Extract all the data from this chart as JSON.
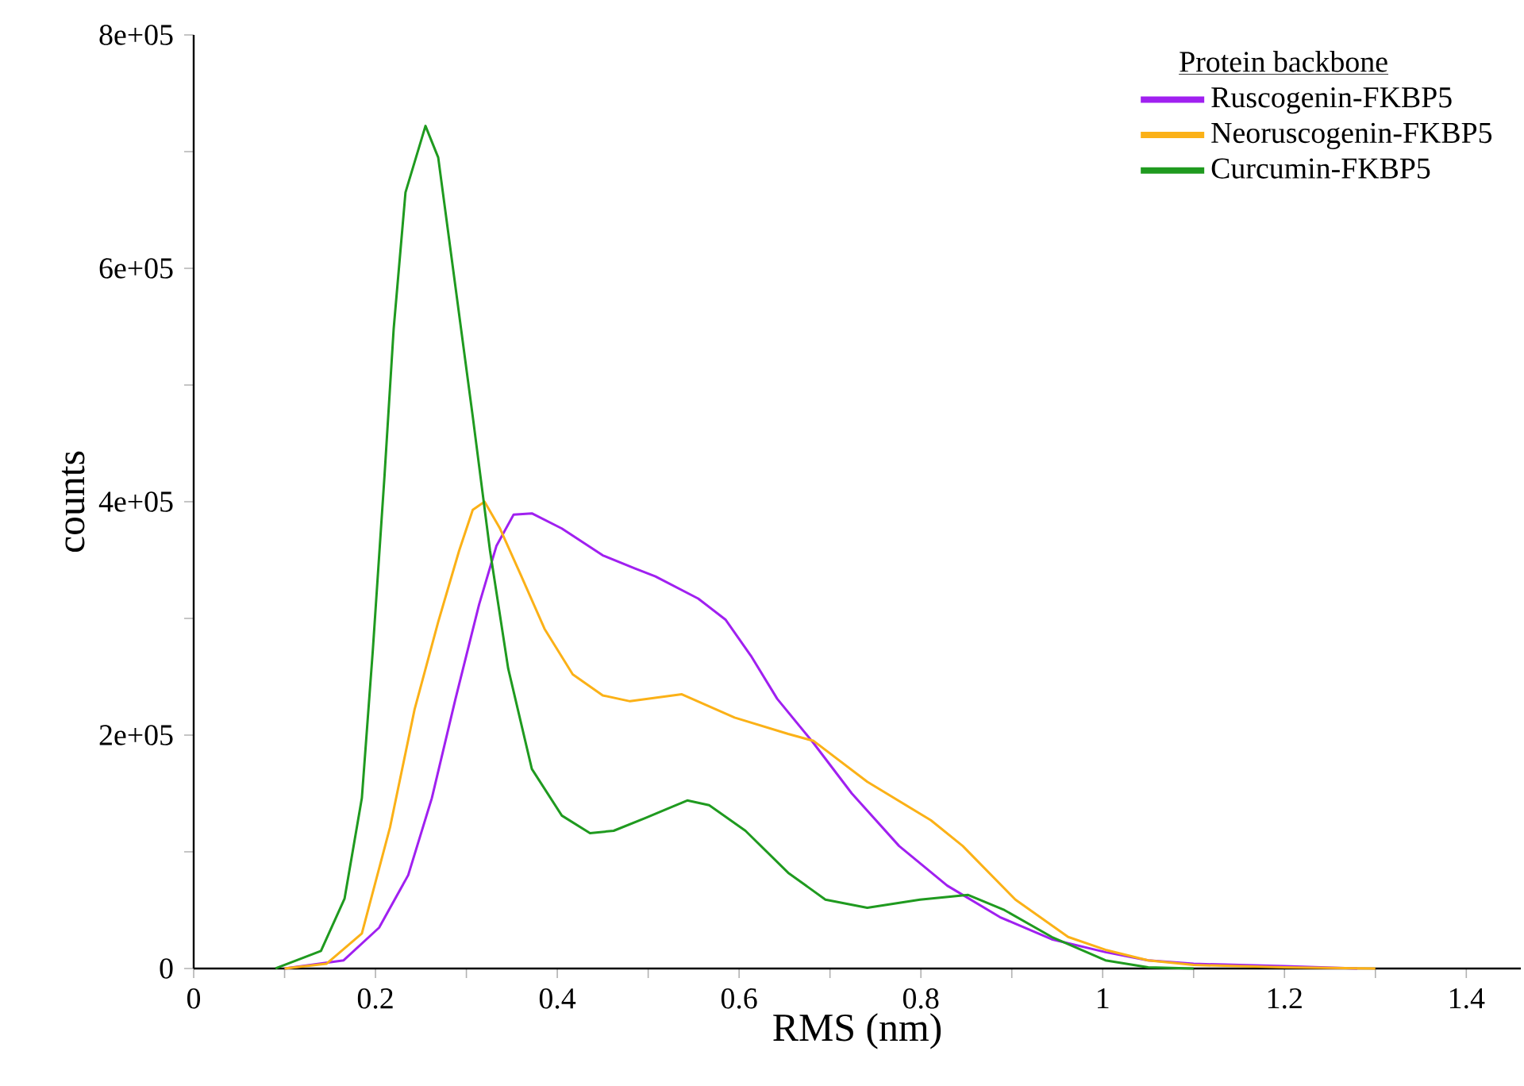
{
  "chart_data": {
    "type": "line",
    "xlabel": "RMS (nm)",
    "ylabel": "counts",
    "legend_title": "Protein backbone",
    "legend": "top right",
    "marker": "none",
    "line_style": "solid",
    "xlim": [
      0,
      1.46
    ],
    "ylim": [
      0,
      800000
    ],
    "xticks": [
      0,
      {
        "value": 0.1,
        "label": null
      },
      {
        "value": 0.2,
        "label": "0.2"
      },
      {
        "value": 0.3,
        "label": null
      },
      {
        "value": 0.4,
        "label": "0.4"
      },
      {
        "value": 0.5,
        "label": null
      },
      {
        "value": 0.6,
        "label": "0.6"
      },
      {
        "value": 0.7,
        "label": null
      },
      {
        "value": 0.8,
        "label": "0.8"
      },
      {
        "value": 0.9,
        "label": null
      },
      1,
      {
        "value": 1.1,
        "label": null
      },
      {
        "value": 1.2,
        "label": "1.2"
      },
      {
        "value": 1.3,
        "label": null
      },
      {
        "value": 1.4,
        "label": "1.4"
      }
    ],
    "yticks": [
      0,
      {
        "value": 100000,
        "label": null
      },
      {
        "value": 200000,
        "label": "2e+05"
      },
      {
        "value": 300000,
        "label": null
      },
      {
        "value": 400000,
        "label": "4e+05"
      },
      {
        "value": 500000,
        "label": null
      },
      {
        "value": 600000,
        "label": "6e+05"
      },
      {
        "value": 700000,
        "label": null
      },
      {
        "value": 800000,
        "label": "8e+05"
      }
    ],
    "series": [
      {
        "name": "Ruscogenin-FKBP5",
        "color": "#a020f0",
        "x": [
          0.1,
          0.165,
          0.204,
          0.236,
          0.262,
          0.288,
          0.314,
          0.333,
          0.352,
          0.372,
          0.405,
          0.45,
          0.485,
          0.508,
          0.555,
          0.585,
          0.613,
          0.642,
          0.682,
          0.724,
          0.776,
          0.829,
          0.887,
          0.944,
          1.003,
          1.05,
          1.1,
          1.2,
          1.28
        ],
        "values": [
          0,
          7000,
          35000,
          80000,
          146000,
          231000,
          312000,
          362000,
          389000,
          390000,
          377000,
          354000,
          343000,
          336000,
          317000,
          299000,
          268000,
          231000,
          193000,
          150000,
          105000,
          71000,
          44000,
          25000,
          14000,
          7000,
          4000,
          2000,
          0
        ]
      },
      {
        "name": "Neoruscogenin-FKBP5",
        "color": "#fbb117",
        "x": [
          0.1,
          0.146,
          0.185,
          0.216,
          0.243,
          0.269,
          0.292,
          0.307,
          0.32,
          0.337,
          0.36,
          0.386,
          0.417,
          0.45,
          0.48,
          0.537,
          0.595,
          0.654,
          0.682,
          0.741,
          0.811,
          0.846,
          0.904,
          0.962,
          1.003,
          1.05,
          1.1,
          1.2,
          1.3
        ],
        "values": [
          0,
          4000,
          30000,
          121000,
          222000,
          297000,
          358000,
          393000,
          400000,
          377000,
          337000,
          291000,
          252000,
          234000,
          229000,
          235000,
          215000,
          201000,
          195000,
          160000,
          127000,
          105000,
          59000,
          27000,
          16000,
          7000,
          3000,
          1000,
          0
        ]
      },
      {
        "name": "Curcumin-FKBP5",
        "color": "#1f9a1f",
        "x": [
          0.09,
          0.14,
          0.166,
          0.185,
          0.197,
          0.21,
          0.22,
          0.233,
          0.255,
          0.269,
          0.288,
          0.307,
          0.326,
          0.346,
          0.372,
          0.405,
          0.436,
          0.462,
          0.497,
          0.543,
          0.567,
          0.607,
          0.654,
          0.695,
          0.741,
          0.799,
          0.852,
          0.892,
          0.944,
          1.003,
          1.05,
          1.1
        ],
        "values": [
          0,
          15000,
          60000,
          146000,
          272000,
          423000,
          548000,
          665000,
          722000,
          695000,
          584000,
          473000,
          358000,
          257000,
          171000,
          131000,
          116000,
          118000,
          129000,
          144000,
          140000,
          118000,
          82000,
          59000,
          52000,
          59000,
          63000,
          50000,
          27000,
          7000,
          1000,
          0
        ]
      }
    ]
  }
}
